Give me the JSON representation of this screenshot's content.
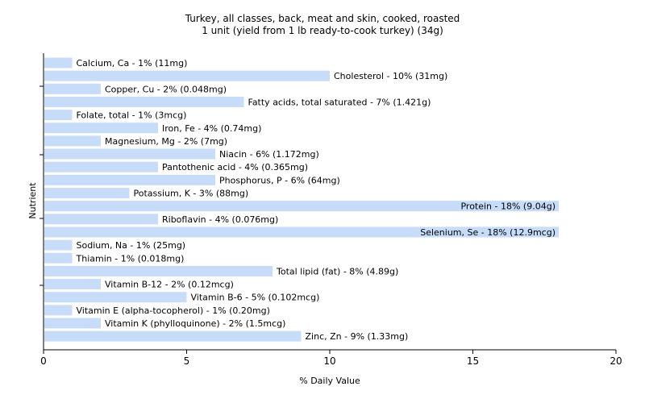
{
  "chart_data": {
    "type": "bar",
    "orientation": "horizontal",
    "title": "Turkey, all classes, back, meat and skin, cooked, roasted",
    "subtitle": "1 unit (yield from 1 lb ready-to-cook turkey) (34g)",
    "xlabel": "% Daily Value",
    "ylabel": "Nutrient",
    "xlim": [
      0,
      20
    ],
    "xticks": [
      "0",
      "5",
      "10",
      "15",
      "20"
    ],
    "grid": false,
    "bar_color": "#c6dcf9",
    "categories": [
      "Calcium, Ca",
      "Cholesterol",
      "Copper, Cu",
      "Fatty acids, total saturated",
      "Folate, total",
      "Iron, Fe",
      "Magnesium, Mg",
      "Niacin",
      "Pantothenic acid",
      "Phosphorus, P",
      "Potassium, K",
      "Protein",
      "Riboflavin",
      "Selenium, Se",
      "Sodium, Na",
      "Thiamin",
      "Total lipid (fat)",
      "Vitamin B-12",
      "Vitamin B-6",
      "Vitamin E (alpha-tocopherol)",
      "Vitamin K (phylloquinone)",
      "Zinc, Zn"
    ],
    "values": [
      1,
      10,
      2,
      7,
      1,
      4,
      2,
      6,
      4,
      6,
      3,
      18,
      4,
      18,
      1,
      1,
      8,
      2,
      5,
      1,
      2,
      9
    ],
    "data_labels": [
      "Calcium, Ca - 1% (11mg)",
      "Cholesterol - 10% (31mg)",
      "Copper, Cu - 2% (0.048mg)",
      "Fatty acids, total saturated - 7% (1.421g)",
      "Folate, total - 1% (3mcg)",
      "Iron, Fe - 4% (0.74mg)",
      "Magnesium, Mg - 2% (7mg)",
      "Niacin - 6% (1.172mg)",
      "Pantothenic acid - 4% (0.365mg)",
      "Phosphorus, P - 6% (64mg)",
      "Potassium, K - 3% (88mg)",
      "Protein - 18% (9.04g)",
      "Riboflavin - 4% (0.076mg)",
      "Selenium, Se - 18% (12.9mcg)",
      "Sodium, Na - 1% (25mg)",
      "Thiamin - 1% (0.018mg)",
      "Total lipid (fat) - 8% (4.89g)",
      "Vitamin B-12 - 2% (0.12mcg)",
      "Vitamin B-6 - 5% (0.102mcg)",
      "Vitamin E (alpha-tocopherol) - 1% (0.20mg)",
      "Vitamin K (phylloquinone) - 2% (1.5mcg)",
      "Zinc, Zn - 9% (1.33mg)"
    ]
  }
}
